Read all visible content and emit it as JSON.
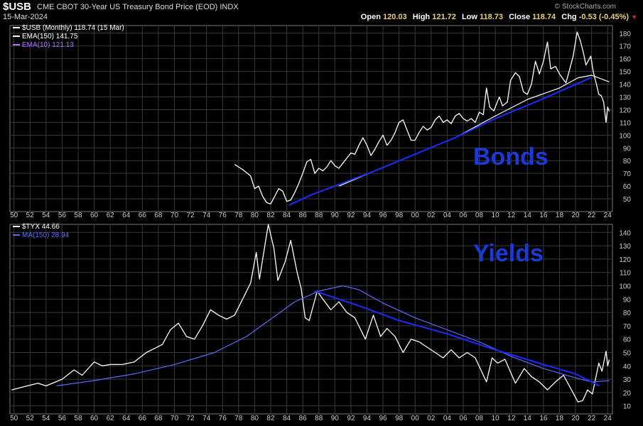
{
  "header": {
    "symbol": "$USB",
    "description": "CME CBOT 30-Year US Treasury Bond Price (EOD)",
    "exchange": "INDX",
    "date": "15-Mar-2024",
    "brand": "© StockCharts.com",
    "ohlc": {
      "open_label": "Open",
      "open": "120.03",
      "high_label": "High",
      "high": "121.72",
      "low_label": "Low",
      "low": "118.73",
      "close_label": "Close",
      "close": "118.74",
      "chg_label": "Chg",
      "chg": "-0.53 (-0.45%)"
    }
  },
  "colors": {
    "price": "#ffffff",
    "trend": "#1a2cff",
    "ema10": "#b070ff",
    "grid": "#3a3a3a",
    "overlay_text": "#1a3ad8"
  },
  "chart_data": [
    {
      "type": "line",
      "panel": "top",
      "legend": [
        {
          "text": "$USB (Monthly) 118.74 (15 Mar)",
          "color": "#ffffff"
        },
        {
          "text": "EMA(150) 141.75",
          "color": "#ffffff"
        },
        {
          "text": "EMA(10) 121.13",
          "color": "#b070ff"
        }
      ],
      "overlay_label": "Bonds",
      "y_ticks": [
        50,
        60,
        70,
        80,
        90,
        100,
        110,
        120,
        130,
        140,
        150,
        160,
        170,
        180
      ],
      "ylim": [
        40,
        186
      ],
      "xlim": [
        1949.5,
        2024.6
      ],
      "series": [
        {
          "name": "$USB",
          "color": "#ffffff",
          "points": [
            [
              1977.5,
              77
            ],
            [
              1978.5,
              73
            ],
            [
              1979.5,
              68
            ],
            [
              1980.0,
              58
            ],
            [
              1980.5,
              60
            ],
            [
              1981.0,
              52
            ],
            [
              1981.5,
              47
            ],
            [
              1982.0,
              46
            ],
            [
              1982.5,
              52
            ],
            [
              1983.0,
              58
            ],
            [
              1983.5,
              56
            ],
            [
              1984.0,
              48
            ],
            [
              1984.5,
              49
            ],
            [
              1985.0,
              55
            ],
            [
              1985.5,
              62
            ],
            [
              1986.0,
              70
            ],
            [
              1986.5,
              79
            ],
            [
              1987.0,
              81
            ],
            [
              1987.5,
              70
            ],
            [
              1988.0,
              74
            ],
            [
              1988.5,
              72
            ],
            [
              1989.0,
              75
            ],
            [
              1989.5,
              80
            ],
            [
              1990.0,
              76
            ],
            [
              1990.5,
              74
            ],
            [
              1991.0,
              78
            ],
            [
              1991.5,
              82
            ],
            [
              1992.0,
              86
            ],
            [
              1992.5,
              85
            ],
            [
              1993.0,
              92
            ],
            [
              1993.5,
              98
            ],
            [
              1994.0,
              92
            ],
            [
              1994.5,
              84
            ],
            [
              1995.0,
              89
            ],
            [
              1995.5,
              95
            ],
            [
              1996.0,
              100
            ],
            [
              1996.5,
              92
            ],
            [
              1997.0,
              96
            ],
            [
              1997.5,
              102
            ],
            [
              1998.0,
              110
            ],
            [
              1998.5,
              112
            ],
            [
              1999.0,
              104
            ],
            [
              1999.5,
              96
            ],
            [
              2000.0,
              96
            ],
            [
              2000.5,
              102
            ],
            [
              2001.0,
              107
            ],
            [
              2001.5,
              104
            ],
            [
              2002.0,
              106
            ],
            [
              2002.5,
              112
            ],
            [
              2003.0,
              115
            ],
            [
              2003.5,
              110
            ],
            [
              2004.0,
              112
            ],
            [
              2004.5,
              109
            ],
            [
              2005.0,
              115
            ],
            [
              2005.5,
              117
            ],
            [
              2006.0,
              113
            ],
            [
              2006.5,
              111
            ],
            [
              2007.0,
              113
            ],
            [
              2007.5,
              110
            ],
            [
              2008.0,
              118
            ],
            [
              2008.5,
              116
            ],
            [
              2008.9,
              137
            ],
            [
              2009.3,
              122
            ],
            [
              2009.8,
              119
            ],
            [
              2010.5,
              130
            ],
            [
              2010.9,
              123
            ],
            [
              2011.5,
              126
            ],
            [
              2011.9,
              143
            ],
            [
              2012.5,
              149
            ],
            [
              2013.0,
              146
            ],
            [
              2013.5,
              134
            ],
            [
              2014.0,
              132
            ],
            [
              2014.5,
              140
            ],
            [
              2015.0,
              158
            ],
            [
              2015.5,
              148
            ],
            [
              2016.0,
              158
            ],
            [
              2016.5,
              173
            ],
            [
              2016.9,
              152
            ],
            [
              2017.5,
              154
            ],
            [
              2018.0,
              148
            ],
            [
              2018.8,
              141
            ],
            [
              2019.2,
              150
            ],
            [
              2019.7,
              162
            ],
            [
              2020.2,
              181
            ],
            [
              2020.6,
              174
            ],
            [
              2021.0,
              164
            ],
            [
              2021.3,
              155
            ],
            [
              2021.9,
              162
            ],
            [
              2022.2,
              150
            ],
            [
              2022.6,
              140
            ],
            [
              2022.9,
              132
            ],
            [
              2023.2,
              131
            ],
            [
              2023.5,
              126
            ],
            [
              2023.8,
              110
            ],
            [
              2024.0,
              122
            ],
            [
              2024.2,
              118.7
            ]
          ]
        },
        {
          "name": "EMA(150)",
          "color": "#ffffff",
          "points": [
            [
              1990.5,
              60
            ],
            [
              1995,
              72
            ],
            [
              2000,
              85
            ],
            [
              2005,
              98
            ],
            [
              2010,
              115
            ],
            [
              2014,
              128
            ],
            [
              2018,
              137
            ],
            [
              2020.3,
              145
            ],
            [
              2022,
              147
            ],
            [
              2024.2,
              141.8
            ]
          ]
        },
        {
          "name": "Trend",
          "color": "#1a2cff",
          "points": [
            [
              1984.3,
              45
            ],
            [
              1987,
              53
            ],
            [
              1990,
              60
            ],
            [
              1995,
              72
            ],
            [
              2000,
              85
            ],
            [
              2005,
              98
            ],
            [
              2010,
              113
            ],
            [
              2015,
              126
            ],
            [
              2019,
              137
            ],
            [
              2021.9,
              145
            ]
          ]
        }
      ]
    },
    {
      "type": "line",
      "panel": "bottom",
      "legend": [
        {
          "text": "$TYX 44.66",
          "color": "#ffffff"
        },
        {
          "text": "MA(150) 28.94",
          "color": "#5a6aff"
        }
      ],
      "overlay_label": "Yields",
      "y_ticks": [
        10,
        20,
        30,
        40,
        50,
        60,
        70,
        80,
        90,
        100,
        110,
        120,
        130,
        140
      ],
      "ylim": [
        4,
        146
      ],
      "xlim": [
        1949.5,
        2024.6
      ],
      "series": [
        {
          "name": "$TYX",
          "color": "#ffffff",
          "points": [
            [
              1949.7,
              22
            ],
            [
              1951,
              24
            ],
            [
              1953,
              27
            ],
            [
              1954,
              25
            ],
            [
              1956,
              30
            ],
            [
              1957.5,
              37
            ],
            [
              1958.5,
              33
            ],
            [
              1960,
              43
            ],
            [
              1961,
              40
            ],
            [
              1962,
              41
            ],
            [
              1963.5,
              41
            ],
            [
              1965,
              43
            ],
            [
              1966.5,
              50
            ],
            [
              1967.5,
              53
            ],
            [
              1968.5,
              56
            ],
            [
              1969.5,
              67
            ],
            [
              1970.5,
              72
            ],
            [
              1971.5,
              62
            ],
            [
              1972.5,
              60
            ],
            [
              1973.5,
              70
            ],
            [
              1974.5,
              82
            ],
            [
              1975.5,
              78
            ],
            [
              1976.5,
              75
            ],
            [
              1977.5,
              78
            ],
            [
              1978.5,
              90
            ],
            [
              1979.5,
              102
            ],
            [
              1980.2,
              125
            ],
            [
              1980.6,
              105
            ],
            [
              1981.7,
              146
            ],
            [
              1982.4,
              128
            ],
            [
              1982.9,
              104
            ],
            [
              1983.8,
              118
            ],
            [
              1984.5,
              134
            ],
            [
              1985.3,
              110
            ],
            [
              1985.8,
              98
            ],
            [
              1986.3,
              76
            ],
            [
              1986.8,
              74
            ],
            [
              1987.8,
              96
            ],
            [
              1988.5,
              90
            ],
            [
              1989.5,
              82
            ],
            [
              1990.5,
              88
            ],
            [
              1991.5,
              80
            ],
            [
              1992.5,
              76
            ],
            [
              1993.8,
              60
            ],
            [
              1994.8,
              78
            ],
            [
              1995.7,
              62
            ],
            [
              1996.5,
              68
            ],
            [
              1997.5,
              62
            ],
            [
              1998.5,
              50
            ],
            [
              1999.5,
              60
            ],
            [
              2000.5,
              58
            ],
            [
              2001.5,
              54
            ],
            [
              2002.5,
              50
            ],
            [
              2003.5,
              46
            ],
            [
              2004.5,
              52
            ],
            [
              2005.5,
              46
            ],
            [
              2006.5,
              50
            ],
            [
              2007.5,
              46
            ],
            [
              2008.9,
              28
            ],
            [
              2009.6,
              46
            ],
            [
              2010.3,
              42
            ],
            [
              2011.2,
              45
            ],
            [
              2012.5,
              27
            ],
            [
              2013.6,
              38
            ],
            [
              2014.5,
              32
            ],
            [
              2015.5,
              28
            ],
            [
              2016.5,
              22
            ],
            [
              2017.5,
              28
            ],
            [
              2018.5,
              33
            ],
            [
              2019.5,
              22
            ],
            [
              2020.3,
              13
            ],
            [
              2020.9,
              14
            ],
            [
              2021.5,
              22
            ],
            [
              2022.1,
              19
            ],
            [
              2022.9,
              42
            ],
            [
              2023.3,
              36
            ],
            [
              2023.8,
              51
            ],
            [
              2024.0,
              40
            ],
            [
              2024.2,
              44.66
            ]
          ]
        },
        {
          "name": "MA(150)",
          "color": "#5a6aff",
          "points": [
            [
              1955.3,
              25
            ],
            [
              1960,
              29
            ],
            [
              1965,
              34
            ],
            [
              1970,
              41
            ],
            [
              1975,
              50
            ],
            [
              1979,
              62
            ],
            [
              1982,
              75
            ],
            [
              1985,
              88
            ],
            [
              1988,
              96
            ],
            [
              1991,
              100
            ],
            [
              1993,
              97
            ],
            [
              1996,
              87
            ],
            [
              2000,
              76
            ],
            [
              2004,
              67
            ],
            [
              2008,
              58
            ],
            [
              2012,
              47
            ],
            [
              2016,
              38
            ],
            [
              2020,
              31
            ],
            [
              2022,
              28
            ],
            [
              2024.2,
              28.9
            ]
          ]
        },
        {
          "name": "Trend",
          "color": "#1a2cff",
          "points": [
            [
              1987.5,
              96
            ],
            [
              1990,
              91
            ],
            [
              1993,
              85
            ],
            [
              1998,
              74
            ],
            [
              2004,
              64
            ],
            [
              2010,
              52
            ],
            [
              2016,
              41
            ],
            [
              2020,
              34
            ],
            [
              2023,
              25
            ]
          ]
        }
      ]
    }
  ],
  "x_ticks": [
    "50",
    "52",
    "54",
    "56",
    "58",
    "60",
    "62",
    "64",
    "66",
    "68",
    "70",
    "72",
    "74",
    "76",
    "78",
    "80",
    "82",
    "84",
    "86",
    "88",
    "90",
    "92",
    "94",
    "96",
    "98",
    "00",
    "02",
    "04",
    "06",
    "08",
    "10",
    "12",
    "14",
    "16",
    "18",
    "20",
    "22",
    "24"
  ]
}
